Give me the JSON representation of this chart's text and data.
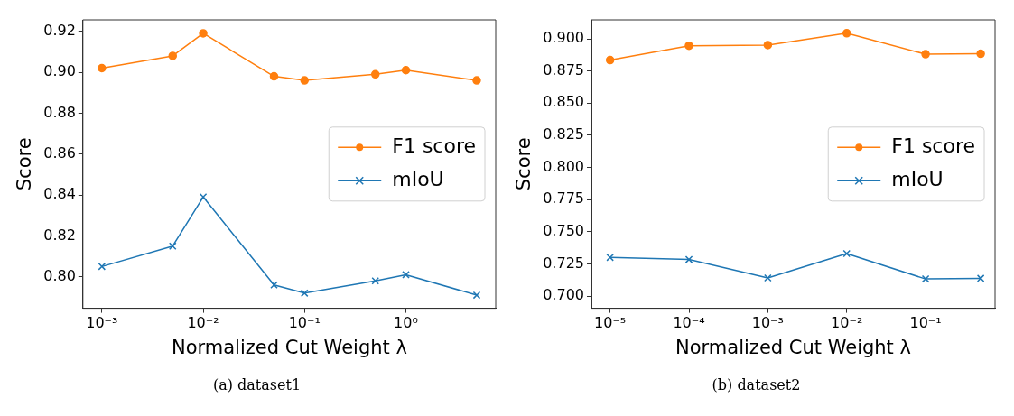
{
  "chart_data": [
    {
      "type": "line",
      "xlabel": "Normalized Cut Weight λ",
      "ylabel": "Score",
      "annotations": [
        "(a) dataset1"
      ],
      "log": "x",
      "grid": false,
      "legend": "right",
      "x": [
        0.001,
        0.005,
        0.01,
        0.05,
        0.1,
        0.5,
        1,
        5
      ],
      "xlim": [
        0.00065,
        7.7
      ],
      "xticks": [
        {
          "value": 0.001,
          "label": "10⁻³"
        },
        {
          "value": 0.01,
          "label": "10⁻²"
        },
        {
          "value": 0.1,
          "label": "10⁻¹"
        },
        {
          "value": 1,
          "label": "10⁰"
        }
      ],
      "ylim": [
        0.7846,
        0.9256
      ],
      "yticks": [
        {
          "value": 0.8,
          "label": "0.80"
        },
        {
          "value": 0.82,
          "label": "0.82"
        },
        {
          "value": 0.84,
          "label": "0.84"
        },
        {
          "value": 0.86,
          "label": "0.86"
        },
        {
          "value": 0.88,
          "label": "0.88"
        },
        {
          "value": 0.9,
          "label": "0.90"
        },
        {
          "value": 0.92,
          "label": "0.92"
        }
      ],
      "series": [
        {
          "name": "F1 score",
          "color": "#ff7f0e",
          "marker": "circle",
          "values": [
            0.902,
            0.908,
            0.919,
            0.898,
            0.896,
            0.899,
            0.901,
            0.896
          ]
        },
        {
          "name": "mIoU",
          "color": "#1f77b4",
          "marker": "cross",
          "values": [
            0.805,
            0.815,
            0.839,
            0.796,
            0.792,
            0.798,
            0.801,
            0.791
          ]
        }
      ]
    },
    {
      "type": "line",
      "xlabel": "Normalized Cut Weight λ",
      "ylabel": "Score",
      "annotations": [
        "(b) dataset2"
      ],
      "log": "x",
      "grid": false,
      "legend": "right",
      "x": [
        1e-05,
        0.0001,
        0.001,
        0.01,
        0.1,
        0.5
      ],
      "xlim": [
        5.8e-06,
        0.76
      ],
      "xticks": [
        {
          "value": 1e-05,
          "label": "10⁻⁵"
        },
        {
          "value": 0.0001,
          "label": "10⁻⁴"
        },
        {
          "value": 0.001,
          "label": "10⁻³"
        },
        {
          "value": 0.01,
          "label": "10⁻²"
        },
        {
          "value": 0.1,
          "label": "10⁻¹"
        }
      ],
      "ylim": [
        0.6905,
        0.9148
      ],
      "yticks": [
        {
          "value": 0.7,
          "label": "0.700"
        },
        {
          "value": 0.725,
          "label": "0.725"
        },
        {
          "value": 0.75,
          "label": "0.750"
        },
        {
          "value": 0.775,
          "label": "0.775"
        },
        {
          "value": 0.8,
          "label": "0.800"
        },
        {
          "value": 0.825,
          "label": "0.825"
        },
        {
          "value": 0.85,
          "label": "0.850"
        },
        {
          "value": 0.875,
          "label": "0.875"
        },
        {
          "value": 0.9,
          "label": "0.900"
        }
      ],
      "series": [
        {
          "name": "F1 score",
          "color": "#ff7f0e",
          "marker": "circle",
          "values": [
            0.8835,
            0.8947,
            0.8952,
            0.9044,
            0.8881,
            0.8884
          ]
        },
        {
          "name": "mIoU",
          "color": "#1f77b4",
          "marker": "cross",
          "values": [
            0.73,
            0.7284,
            0.7141,
            0.733,
            0.7133,
            0.7138
          ]
        }
      ]
    }
  ]
}
